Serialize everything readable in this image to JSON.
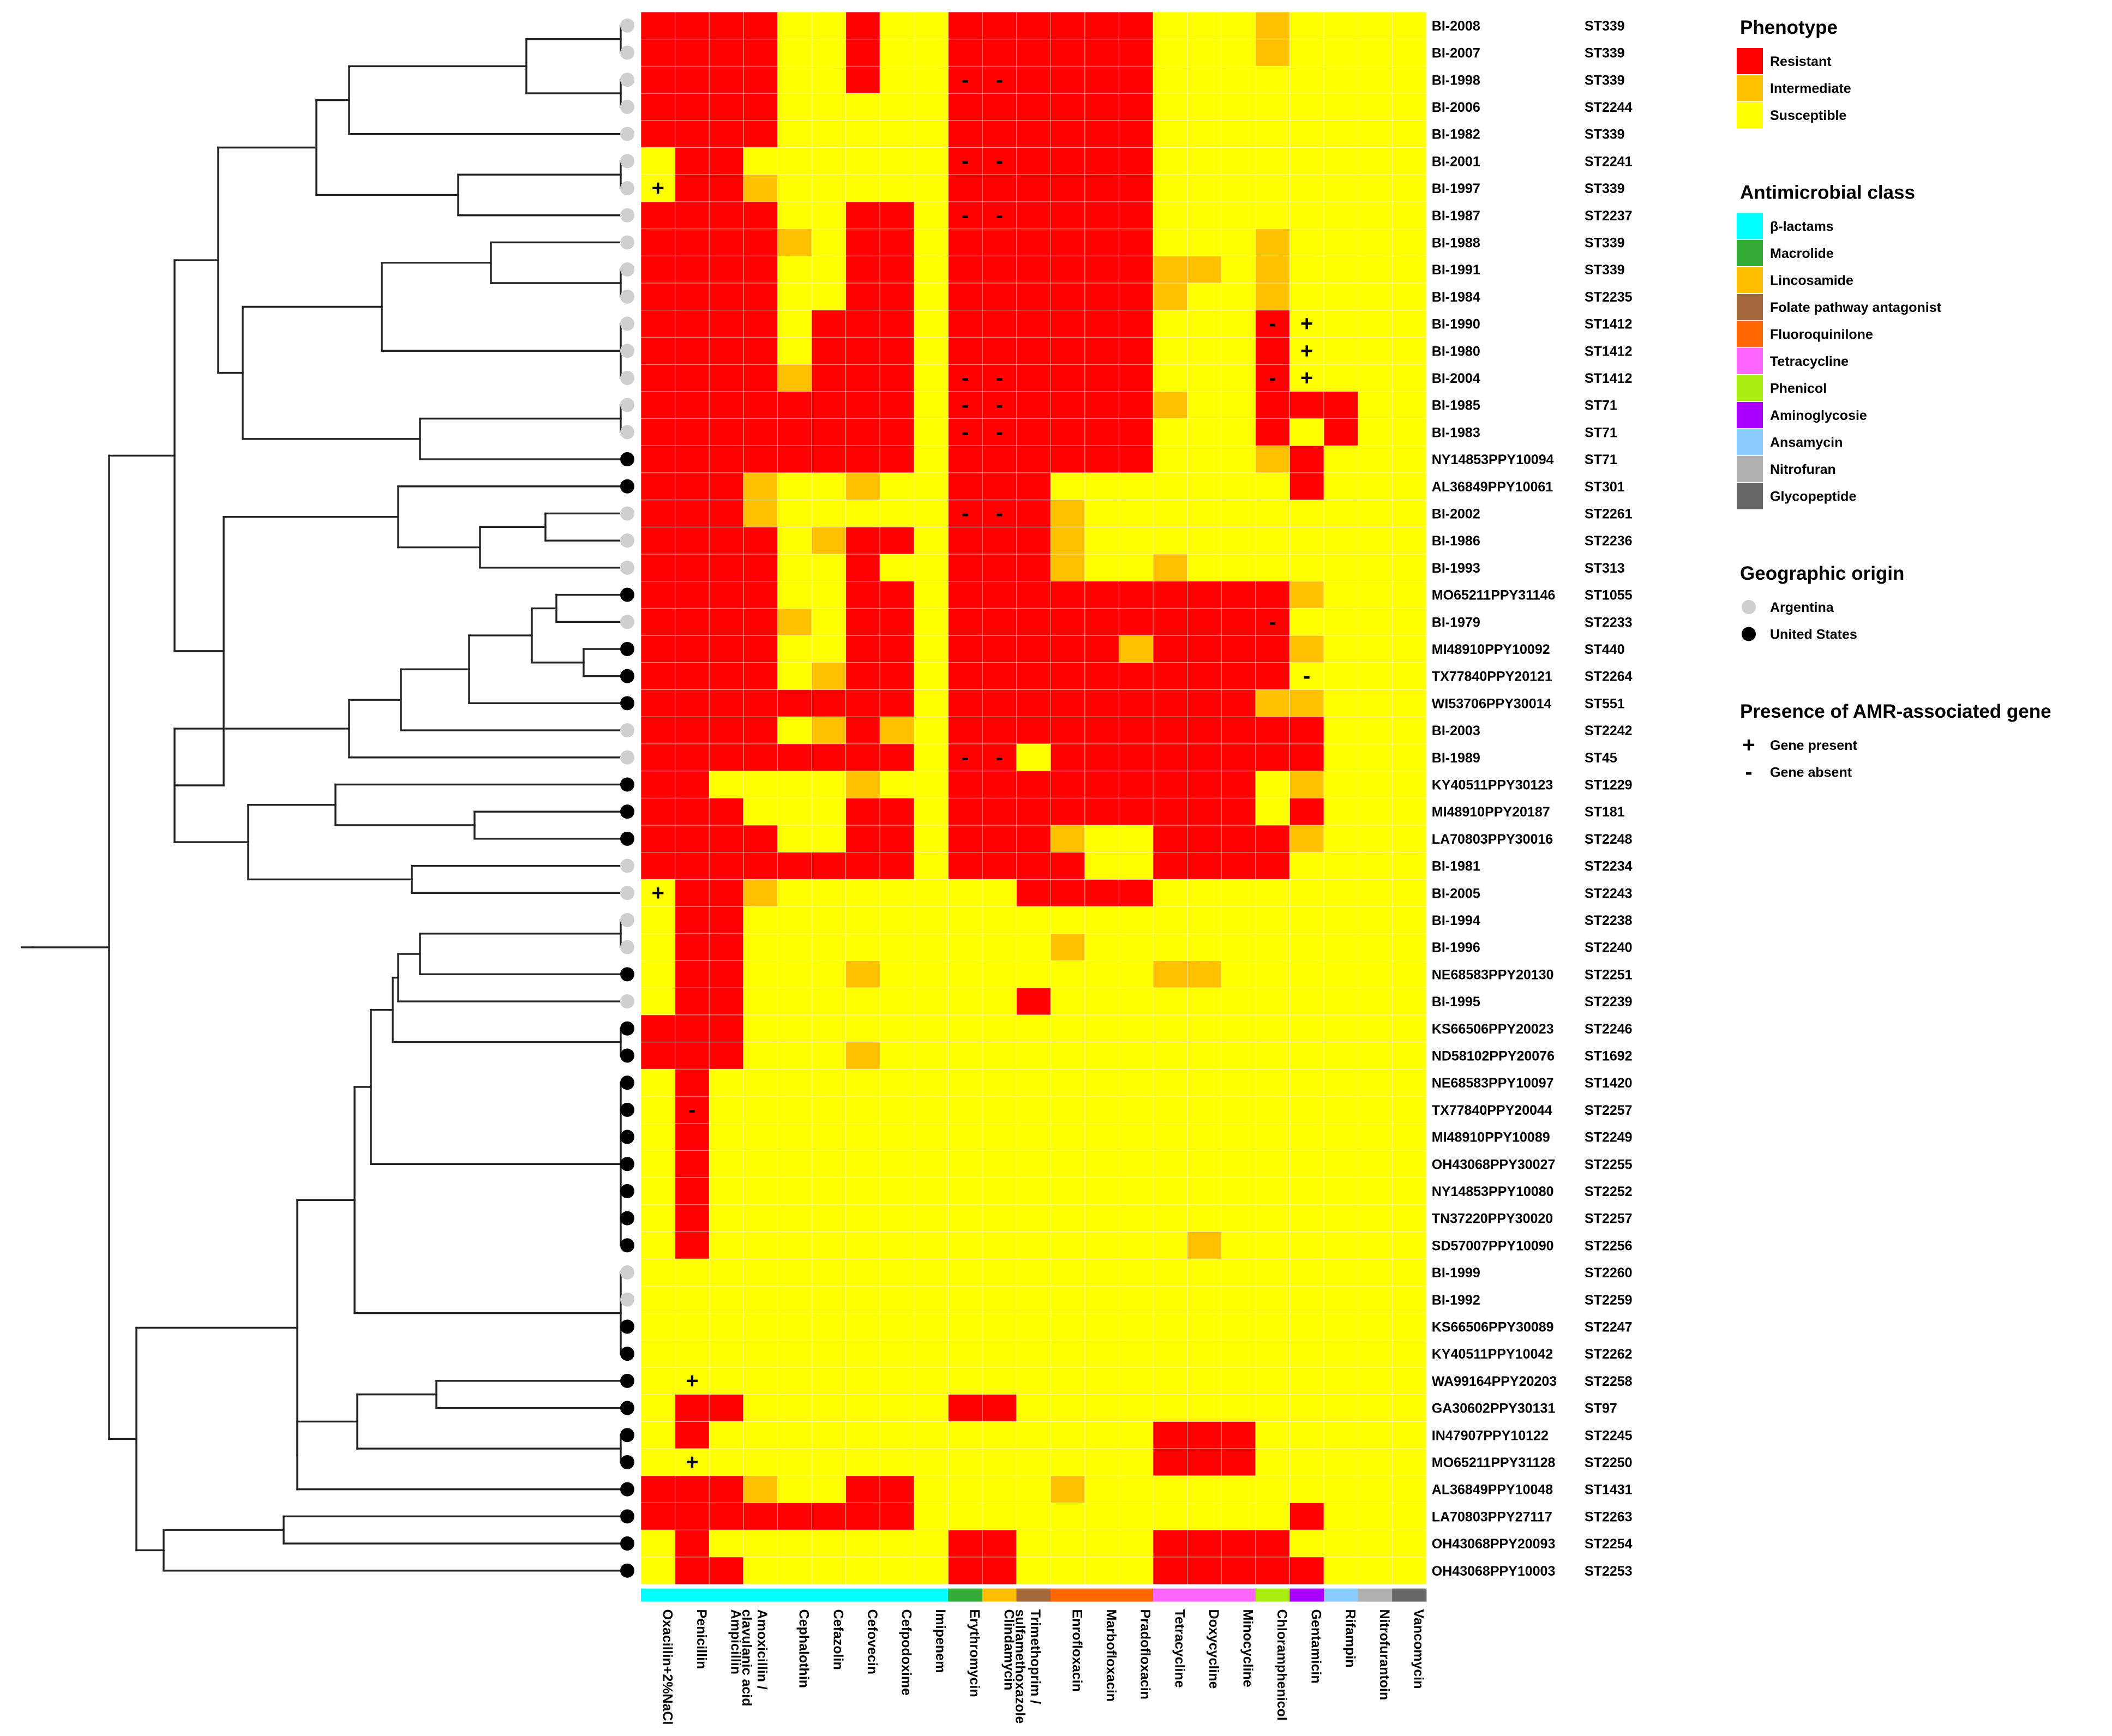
{
  "chart_data": {
    "type": "heatmap",
    "columns": [
      "Oxacillin+2%NaCl",
      "Penicillin",
      "Ampicillin",
      "Amoxicillin / clavulanic acid",
      "Cephalothin",
      "Cefazolin",
      "Cefovecin",
      "Cefpodoxime",
      "Imipenem",
      "Erythromycin",
      "Clindamycin",
      "Trimethoprim / sulfamethoxazole",
      "Enrofloxacin",
      "Marbofloxacin",
      "Pradofloxacin",
      "Tetracycline",
      "Doxycycline",
      "Minocycline",
      "Chloramphenicol",
      "Gentamicin",
      "Rifampin",
      "Nitrofurantoin",
      "Vancomycin"
    ],
    "column_class": [
      "β-lactams",
      "β-lactams",
      "β-lactams",
      "β-lactams",
      "β-lactams",
      "β-lactams",
      "β-lactams",
      "β-lactams",
      "β-lactams",
      "Macrolide",
      "Lincosamide",
      "Folate pathway antagonist",
      "Fluoroquinilone",
      "Fluoroquinilone",
      "Fluoroquinilone",
      "Tetracycline",
      "Tetracycline",
      "Tetracycline",
      "Phenicol",
      "Aminoglycosie",
      "Ansamycin",
      "Nitrofuran",
      "Glycopeptide"
    ],
    "rows": [
      {
        "isolate": "BI-2008",
        "st": "ST339",
        "origin": "Argentina",
        "p": "RRRRSSRSSRRRRRRSSSISSSS",
        "m": ""
      },
      {
        "isolate": "BI-2007",
        "st": "ST339",
        "origin": "Argentina",
        "p": "RRRRSSRSSRRRRRRSSSISSSS",
        "m": ""
      },
      {
        "isolate": "BI-1998",
        "st": "ST339",
        "origin": "Argentina",
        "p": "RRRRSSRSSRRRRRRSSSSSSSS",
        "m": "9-,10-"
      },
      {
        "isolate": "BI-2006",
        "st": "ST2244",
        "origin": "Argentina",
        "p": "RRRRSSSSSRRRRRRSSSSSSSS",
        "m": ""
      },
      {
        "isolate": "BI-1982",
        "st": "ST339",
        "origin": "Argentina",
        "p": "RRRRSSSSSRRRRRRSSSSSSSS",
        "m": ""
      },
      {
        "isolate": "BI-2001",
        "st": "ST2241",
        "origin": "Argentina",
        "p": "SRRSSSSSSRRRRRRSSSSSSSS",
        "m": "9-,10-"
      },
      {
        "isolate": "BI-1997",
        "st": "ST339",
        "origin": "Argentina",
        "p": "SRRISSSSSRRRRRRSSSSSSSS",
        "m": "0+"
      },
      {
        "isolate": "BI-1987",
        "st": "ST2237",
        "origin": "Argentina",
        "p": "RRRRSSRRSRRRRRRSSSSSSSS",
        "m": "9-,10-"
      },
      {
        "isolate": "BI-1988",
        "st": "ST339",
        "origin": "Argentina",
        "p": "RRRRISRRSRRRRRRSSSISSSS",
        "m": ""
      },
      {
        "isolate": "BI-1991",
        "st": "ST339",
        "origin": "Argentina",
        "p": "RRRRSSRRSRRRRRRIISISSSS",
        "m": ""
      },
      {
        "isolate": "BI-1984",
        "st": "ST2235",
        "origin": "Argentina",
        "p": "RRRRSSRRSRRRRRRISSISSSS",
        "m": ""
      },
      {
        "isolate": "BI-1990",
        "st": "ST1412",
        "origin": "Argentina",
        "p": "RRRRSRRRSRRRRRRSSSRSSSS",
        "m": "18-,19+"
      },
      {
        "isolate": "BI-1980",
        "st": "ST1412",
        "origin": "Argentina",
        "p": "RRRRSRRRSRRRRRRSSSRSSSS",
        "m": "19+"
      },
      {
        "isolate": "BI-2004",
        "st": "ST1412",
        "origin": "Argentina",
        "p": "RRRRIRRRSRRRRRRSSSRSSSS",
        "m": "9-,10-,18-,19+"
      },
      {
        "isolate": "BI-1985",
        "st": "ST71",
        "origin": "Argentina",
        "p": "RRRRRRRRSRRRRRRISSRRRSS",
        "m": "9-,10-"
      },
      {
        "isolate": "BI-1983",
        "st": "ST71",
        "origin": "Argentina",
        "p": "RRRRRRRRSRRRRRRSSSRSRSS",
        "m": "9-,10-"
      },
      {
        "isolate": "NY14853PPY10094",
        "st": "ST71",
        "origin": "United States",
        "p": "RRRRRRRRSRRRRRRSSSIRSSS",
        "m": ""
      },
      {
        "isolate": "AL36849PPY10061",
        "st": "ST301",
        "origin": "United States",
        "p": "RRRISSISSRRRSSSSSSSRSSS",
        "m": ""
      },
      {
        "isolate": "BI-2002",
        "st": "ST2261",
        "origin": "Argentina",
        "p": "RRRISSSSSRRRISSSSSSSSSS",
        "m": "9-,10-"
      },
      {
        "isolate": "BI-1986",
        "st": "ST2236",
        "origin": "Argentina",
        "p": "RRRRSIRRSRRRISSSSSSSSSS",
        "m": ""
      },
      {
        "isolate": "BI-1993",
        "st": "ST313",
        "origin": "Argentina",
        "p": "RRRRSSRSSRRRISSISSSSSSS",
        "m": ""
      },
      {
        "isolate": "MO65211PPY31146",
        "st": "ST1055",
        "origin": "United States",
        "p": "RRRRSSRRSRRRRRRRRRRISSS",
        "m": ""
      },
      {
        "isolate": "BI-1979",
        "st": "ST2233",
        "origin": "Argentina",
        "p": "RRRRISRRSRRRRRRRRRRSSSS",
        "m": "18-"
      },
      {
        "isolate": "MI48910PPY10092",
        "st": "ST440",
        "origin": "United States",
        "p": "RRRRSSRRSRRRRRIRRRRISSS",
        "m": ""
      },
      {
        "isolate": "TX77840PPY20121",
        "st": "ST2264",
        "origin": "United States",
        "p": "RRRRSIRRSRRRRRRRRRRSSSS",
        "m": "19-"
      },
      {
        "isolate": "WI53706PPY30014",
        "st": "ST551",
        "origin": "United States",
        "p": "RRRRRRRRSRRRRRRRRRIISSS",
        "m": ""
      },
      {
        "isolate": "BI-2003",
        "st": "ST2242",
        "origin": "Argentina",
        "p": "RRRRSIRISRRRRRRRRRRRSSS",
        "m": ""
      },
      {
        "isolate": "BI-1989",
        "st": "ST45",
        "origin": "Argentina",
        "p": "RRRRRRRRSRRSRRRRRRRRSSS",
        "m": "9-,10-"
      },
      {
        "isolate": "KY40511PPY30123",
        "st": "ST1229",
        "origin": "United States",
        "p": "RRSSSSISSRRRRRRRRRSISSS",
        "m": ""
      },
      {
        "isolate": "MI48910PPY20187",
        "st": "ST181",
        "origin": "United States",
        "p": "RRRSSSRRSRRRRRRRRRSRSSS",
        "m": ""
      },
      {
        "isolate": "LA70803PPY30016",
        "st": "ST2248",
        "origin": "United States",
        "p": "RRRRSSRRSRRRISSRRRRISSS",
        "m": ""
      },
      {
        "isolate": "BI-1981",
        "st": "ST2234",
        "origin": "Argentina",
        "p": "RRRRRRRRSRRRRSSRRRRSSSS",
        "m": ""
      },
      {
        "isolate": "BI-2005",
        "st": "ST2243",
        "origin": "Argentina",
        "p": "SRRISSSSSSSRRRRSSSSSSSS",
        "m": "0+"
      },
      {
        "isolate": "BI-1994",
        "st": "ST2238",
        "origin": "Argentina",
        "p": "SRRSSSSSSSSSSSSSSSSSSSS",
        "m": ""
      },
      {
        "isolate": "BI-1996",
        "st": "ST2240",
        "origin": "Argentina",
        "p": "SRRSSSSSSSSSISSSSSSSSSS",
        "m": ""
      },
      {
        "isolate": "NE68583PPY20130",
        "st": "ST2251",
        "origin": "United States",
        "p": "SRRSSSISSSSSSSSIISSSSSS",
        "m": ""
      },
      {
        "isolate": "BI-1995",
        "st": "ST2239",
        "origin": "Argentina",
        "p": "SRRSSSSSSSSRSSSSSSSSSSS",
        "m": ""
      },
      {
        "isolate": "KS66506PPY20023",
        "st": "ST2246",
        "origin": "United States",
        "p": "RRRSSSSSSSSSSSSSSSSSSSS",
        "m": ""
      },
      {
        "isolate": "ND58102PPY20076",
        "st": "ST1692",
        "origin": "United States",
        "p": "RRRSSSISSSSSSSSSSSSSSSS",
        "m": ""
      },
      {
        "isolate": "NE68583PPY10097",
        "st": "ST1420",
        "origin": "United States",
        "p": "SRSSSSSSSSSSSSSSSSSSSSS",
        "m": ""
      },
      {
        "isolate": "TX77840PPY20044",
        "st": "ST2257",
        "origin": "United States",
        "p": "SRSSSSSSSSSSSSSSSSSSSSS",
        "m": "1-"
      },
      {
        "isolate": "MI48910PPY10089",
        "st": "ST2249",
        "origin": "United States",
        "p": "SRSSSSSSSSSSSSSSSSSSSSS",
        "m": ""
      },
      {
        "isolate": "OH43068PPY30027",
        "st": "ST2255",
        "origin": "United States",
        "p": "SRSSSSSSSSSSSSSSSSSSSSS",
        "m": ""
      },
      {
        "isolate": "NY14853PPY10080",
        "st": "ST2252",
        "origin": "United States",
        "p": "SRSSSSSSSSSSSSSSSSSSSSS",
        "m": ""
      },
      {
        "isolate": "TN37220PPY30020",
        "st": "ST2257",
        "origin": "United States",
        "p": "SRSSSSSSSSSSSSSSSSSSSSS",
        "m": ""
      },
      {
        "isolate": "SD57007PPY10090",
        "st": "ST2256",
        "origin": "United States",
        "p": "SRSSSSSSSSSSSSSSISSSSSS",
        "m": ""
      },
      {
        "isolate": "BI-1999",
        "st": "ST2260",
        "origin": "Argentina",
        "p": "SSSSSSSSSSSSSSSSSSSSSSS",
        "m": ""
      },
      {
        "isolate": "BI-1992",
        "st": "ST2259",
        "origin": "Argentina",
        "p": "SSSSSSSSSSSSSSSSSSSSSSS",
        "m": ""
      },
      {
        "isolate": "KS66506PPY30089",
        "st": "ST2247",
        "origin": "United States",
        "p": "SSSSSSSSSSSSSSSSSSSSSSS",
        "m": ""
      },
      {
        "isolate": "KY40511PPY10042",
        "st": "ST2262",
        "origin": "United States",
        "p": "SSSSSSSSSSSSSSSSSSSSSSS",
        "m": ""
      },
      {
        "isolate": "WA99164PPY20203",
        "st": "ST2258",
        "origin": "United States",
        "p": "SSSSSSSSSSSSSSSSSSSSSSS",
        "m": "1+"
      },
      {
        "isolate": "GA30602PPY30131",
        "st": "ST97",
        "origin": "United States",
        "p": "SRRSSSSSSRRSSSSSSSSSSSS",
        "m": ""
      },
      {
        "isolate": "IN47907PPY10122",
        "st": "ST2245",
        "origin": "United States",
        "p": "SRSSSSSSSSSSSSSRRRSSSSS",
        "m": ""
      },
      {
        "isolate": "MO65211PPY31128",
        "st": "ST2250",
        "origin": "United States",
        "p": "SSSSSSSSSSSSSSSRRRSSSSS",
        "m": "1+"
      },
      {
        "isolate": "AL36849PPY10048",
        "st": "ST1431",
        "origin": "United States",
        "p": "RRRISSRRSSSSISSSSSSSSSS",
        "m": ""
      },
      {
        "isolate": "LA70803PPY27117",
        "st": "ST2263",
        "origin": "United States",
        "p": "RRRRRRRRSSSSSSSSSSSRSSS",
        "m": ""
      },
      {
        "isolate": "OH43068PPY20093",
        "st": "ST2254",
        "origin": "United States",
        "p": "SRSSSSSSSRRSSSSRRRRSSSS",
        "m": ""
      },
      {
        "isolate": "OH43068PPY10003",
        "st": "ST2253",
        "origin": "United States",
        "p": "SRRSSSSSSRRSSSSRRRRRSSS",
        "m": ""
      }
    ],
    "phenotype_codes": {
      "R": "Resistant",
      "I": "Intermediate",
      "S": "Susceptible"
    },
    "marker_codes": {
      "+": "Gene present",
      "-": "Gene absent"
    },
    "dendrogram": {
      "leaves": [
        [
          0,
          1
        ],
        [
          2,
          3
        ],
        [
          4
        ],
        [
          5,
          6
        ],
        [
          7
        ],
        [
          8
        ],
        [
          9,
          10
        ],
        [
          11,
          12,
          13
        ],
        [
          14,
          15
        ],
        [
          16
        ],
        [
          17
        ],
        [
          18
        ],
        [
          19
        ],
        [
          20
        ],
        [
          21
        ],
        [
          22
        ],
        [
          23
        ],
        [
          24
        ],
        [
          25
        ],
        [
          26
        ],
        [
          27
        ],
        [
          28
        ],
        [
          29
        ],
        [
          30
        ],
        [
          31
        ],
        [
          32
        ],
        [
          33,
          34
        ],
        [
          35
        ],
        [
          36
        ],
        [
          37,
          38
        ],
        [
          39,
          40,
          41,
          42,
          43,
          44,
          45
        ],
        [
          46,
          47,
          48,
          49
        ],
        [
          50
        ],
        [
          51
        ],
        [
          52,
          53
        ],
        [
          54
        ],
        [
          55
        ],
        [
          56
        ],
        [
          57
        ]
      ]
    }
  },
  "colors": {
    "Resistant": "#ff0000",
    "Intermediate": "#ffc000",
    "Susceptible": "#ffff00",
    "β-lactams": "#00ffff",
    "Macrolide": "#33aa33",
    "Lincosamide": "#ffbf00",
    "Folate pathway antagonist": "#a5683a",
    "Fluoroquinilone": "#ff6600",
    "Tetracycline": "#ff66ff",
    "Phenicol": "#aaee11",
    "Aminoglycosie": "#aa00ff",
    "Ansamycin": "#88ccff",
    "Nitrofuran": "#b0b0b0",
    "Glycopeptide": "#666666",
    "Argentina": "#cfcfcf",
    "United States": "#000000"
  },
  "legend": {
    "phenotype_title": "Phenotype",
    "phenotype_items": [
      "Resistant",
      "Intermediate",
      "Susceptible"
    ],
    "class_title": "Antimicrobial class",
    "class_items": [
      "β-lactams",
      "Macrolide",
      "Lincosamide",
      "Folate pathway antagonist",
      "Fluoroquinilone",
      "Tetracycline",
      "Phenicol",
      "Aminoglycosie",
      "Ansamycin",
      "Nitrofuran",
      "Glycopeptide"
    ],
    "origin_title": "Geographic origin",
    "origin_items": [
      "Argentina",
      "United States"
    ],
    "gene_title": "Presence of AMR-associated gene",
    "gene_items": [
      {
        "symbol": "+",
        "label": "Gene present"
      },
      {
        "symbol": "-",
        "label": "Gene absent"
      }
    ]
  }
}
